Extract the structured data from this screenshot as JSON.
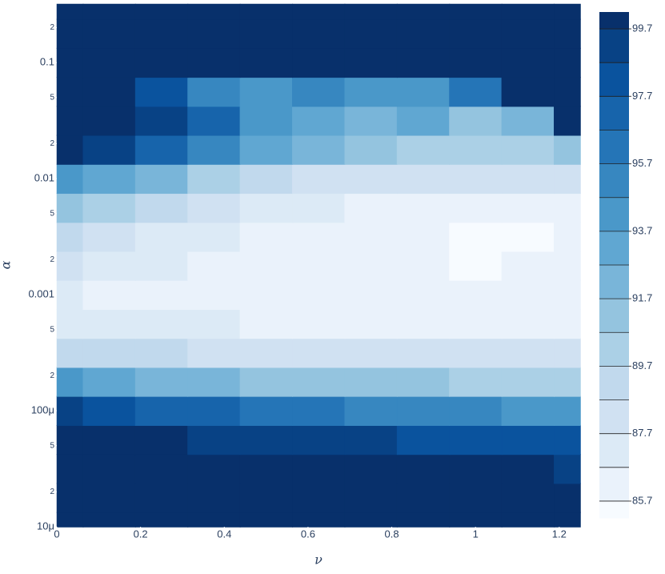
{
  "chart_data": {
    "type": "contour",
    "x_label": "ν",
    "y_label": "α",
    "x": [
      0,
      0.125,
      0.25,
      0.375,
      0.5,
      0.625,
      0.75,
      0.875,
      1,
      1.125,
      1.25
    ],
    "y": [
      1e-05,
      1.78e-05,
      3.16e-05,
      5.62e-05,
      0.0001,
      0.000178,
      0.000316,
      0.000562,
      0.001,
      0.00178,
      0.00316,
      0.00562,
      0.01,
      0.0178,
      0.0316,
      0.0562,
      0.1,
      0.178,
      0.316
    ],
    "z": [
      [
        100,
        100,
        100,
        100,
        100,
        100,
        100,
        100,
        100,
        100,
        100
      ],
      [
        100,
        100,
        100,
        100,
        100,
        100,
        100,
        100,
        100,
        100,
        100
      ],
      [
        100,
        100,
        100,
        100,
        100,
        100,
        100,
        99.9,
        99.8,
        99.7,
        99.5
      ],
      [
        100,
        99.9,
        99.7,
        99.4,
        99.2,
        99,
        98.8,
        98.6,
        98.4,
        98.2,
        98
      ],
      [
        99.5,
        98.5,
        97.5,
        97,
        96.5,
        96,
        95.5,
        95,
        94.8,
        94.5,
        94.3
      ],
      [
        94,
        93,
        92.5,
        92,
        91.5,
        91.2,
        91,
        90.8,
        90.5,
        90.3,
        90
      ],
      [
        89.5,
        89,
        88.8,
        88.6,
        88.5,
        88.4,
        88.3,
        88.2,
        88.1,
        88,
        87.9
      ],
      [
        87.5,
        87,
        86.8,
        86.7,
        86.6,
        86.6,
        86.6,
        86.6,
        86.5,
        86.5,
        86.6
      ],
      [
        87,
        86.3,
        86,
        85.9,
        85.9,
        85.8,
        85.8,
        85.8,
        85.8,
        85.8,
        85.9
      ],
      [
        88,
        87.5,
        86.8,
        86.3,
        85.9,
        85.8,
        85.8,
        85.7,
        85.6,
        85.7,
        85.8
      ],
      [
        89.5,
        88.5,
        87.5,
        86.8,
        86.2,
        85.9,
        85.8,
        85.7,
        85.4,
        85.6,
        85.8
      ],
      [
        91.5,
        90.5,
        89,
        88,
        87.2,
        86.8,
        86.5,
        86.3,
        86.2,
        86.3,
        86.5
      ],
      [
        94,
        93.5,
        92,
        90.5,
        89.5,
        88.5,
        88,
        87.8,
        87.7,
        87.8,
        88
      ],
      [
        100,
        99.5,
        97,
        95,
        93.5,
        92,
        91,
        90.5,
        90,
        90,
        91
      ],
      [
        100,
        100,
        99,
        97.5,
        94,
        93,
        92,
        93,
        91,
        92,
        100
      ],
      [
        100,
        100,
        98,
        95.5,
        94,
        95,
        94,
        94,
        96,
        100,
        100
      ],
      [
        100,
        100,
        100,
        100,
        100,
        100,
        100,
        100,
        100,
        100,
        100
      ],
      [
        100,
        100,
        100,
        100,
        100,
        100,
        100,
        100,
        100,
        100,
        100
      ],
      [
        100,
        100,
        100,
        100,
        100,
        100,
        100,
        100,
        100,
        100,
        100
      ]
    ],
    "log_y": true,
    "xlim": [
      0,
      1.25
    ],
    "ylim": [
      1e-05,
      0.32
    ],
    "xticks": [
      0,
      0.2,
      0.4,
      0.6,
      0.8,
      1,
      1.2
    ],
    "yticks": [
      {
        "value": 1e-05,
        "label": "10μ"
      },
      {
        "value": 2e-05,
        "label": "2"
      },
      {
        "value": 5e-05,
        "label": "5"
      },
      {
        "value": 0.0001,
        "label": "100μ"
      },
      {
        "value": 0.0002,
        "label": "2"
      },
      {
        "value": 0.0005,
        "label": "5"
      },
      0.001,
      {
        "value": 0.002,
        "label": "2"
      },
      {
        "value": 0.005,
        "label": "5"
      },
      0.01,
      {
        "value": 0.02,
        "label": "2"
      },
      {
        "value": 0.05,
        "label": "5"
      },
      0.1,
      {
        "value": 0.2,
        "label": "2"
      }
    ],
    "contours": {
      "start": 85.7,
      "end": 99.7,
      "size": 1
    },
    "zlim": [
      85.2,
      100.2
    ],
    "colorbar_ticks": [
      85.7,
      87.7,
      89.7,
      91.7,
      93.7,
      95.7,
      97.7,
      99.7
    ],
    "colorscale": [
      "#f7fbff",
      "#deebf7",
      "#c6dbef",
      "#9ecae1",
      "#6baed6",
      "#4292c6",
      "#2171b5",
      "#08519c",
      "#08306b"
    ]
  }
}
